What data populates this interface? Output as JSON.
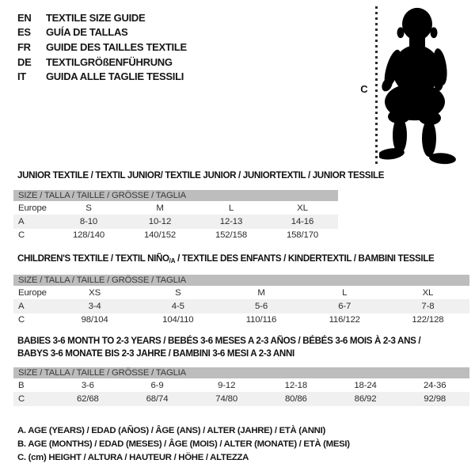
{
  "languages": [
    {
      "code": "EN",
      "label": "TEXTILE SIZE GUIDE"
    },
    {
      "code": "ES",
      "label": "GUÍA DE TALLAS"
    },
    {
      "code": "FR",
      "label": "GUIDE DES TAILLES TEXTILE"
    },
    {
      "code": "DE",
      "label": "TEXTILGRÖßENFÜHRUNG"
    },
    {
      "code": "IT",
      "label": "GUIDA ALLE TAGLIE TESSILI"
    }
  ],
  "figure": {
    "height_marker": "C",
    "icon": "baby-silhouette-icon"
  },
  "sections": [
    {
      "title_lines": [
        [
          {
            "t": "JUNIOR TEXTILE / TEXTIL JUNIOR/ TEXTILE JUNIOR / JUNIORTEXTIL / JUNIOR TESSILE"
          }
        ]
      ],
      "size_header": "SIZE / TALLA / TAILLE / GRÖSSE / TAGLIA",
      "rows": [
        {
          "label": "Europe",
          "shaded": false,
          "values": [
            "S",
            "M",
            "L",
            "XL"
          ]
        },
        {
          "label": "A",
          "shaded": true,
          "values": [
            "8-10",
            "10-12",
            "12-13",
            "14-16"
          ]
        },
        {
          "label": "C",
          "shaded": false,
          "values": [
            "128/140",
            "140/152",
            "152/158",
            "158/170"
          ]
        }
      ]
    },
    {
      "title_lines": [
        [
          {
            "t": "CHILDREN'S TEXTILE / TEXTIL NIÑO"
          },
          {
            "t": "/A",
            "sub": true
          },
          {
            "t": " / TEXTILE DES ENFANTS / KINDERTEXTIL / BAMBINI TESSILE"
          }
        ]
      ],
      "size_header": "SIZE / TALLA / TAILLE / GRÖSSE / TAGLIA",
      "rows": [
        {
          "label": "Europe",
          "shaded": false,
          "values": [
            "XS",
            "S",
            "M",
            "L",
            "XL"
          ]
        },
        {
          "label": "A",
          "shaded": true,
          "values": [
            "3-4",
            "4-5",
            "5-6",
            "6-7",
            "7-8"
          ]
        },
        {
          "label": "C",
          "shaded": false,
          "values": [
            "98/104",
            "104/110",
            "110/116",
            "116/122",
            "122/128"
          ]
        }
      ]
    },
    {
      "title_lines": [
        [
          {
            "t": "BABIES 3-6 MONTH TO 2-3 YEARS / BEBÉS 3-6 MESES A 2-3 AÑOS / BÉBÉS 3-6 MOIS À 2-3 ANS /"
          }
        ],
        [
          {
            "t": "BABYS 3-6 MONATE BIS 2-3 JAHRE / BAMBINI 3-6 MESI A 2-3 ANNI"
          }
        ]
      ],
      "size_header": "SIZE / TALLA / TAILLE / GRÖSSE / TAGLIA",
      "rows": [
        {
          "label": "B",
          "shaded": false,
          "values": [
            "3-6",
            "6-9",
            "9-12",
            "12-18",
            "18-24",
            "24-36"
          ]
        },
        {
          "label": "C",
          "shaded": true,
          "values": [
            "62/68",
            "68/74",
            "74/80",
            "80/86",
            "86/92",
            "92/98"
          ]
        }
      ]
    }
  ],
  "footnotes": [
    "A. AGE (YEARS) / EDAD (AÑOS) / ÂGE (ANS) / ALTER (JAHRE) / ETÀ (ANNI)",
    "B. AGE (MONTHS) / EDAD (MESES) / ÂGE (MOIS) / ALTER (MONATE) / ETÀ (MESI)",
    "C. (cm) HEIGHT / ALTURA / HAUTEUR / HÖHE / ALTEZZA"
  ],
  "colors": {
    "header_bar": "#bdbdbd",
    "row_shaded": "#f0f0f0",
    "silhouette": "#000000",
    "measure_line": "#2e2e2e"
  }
}
